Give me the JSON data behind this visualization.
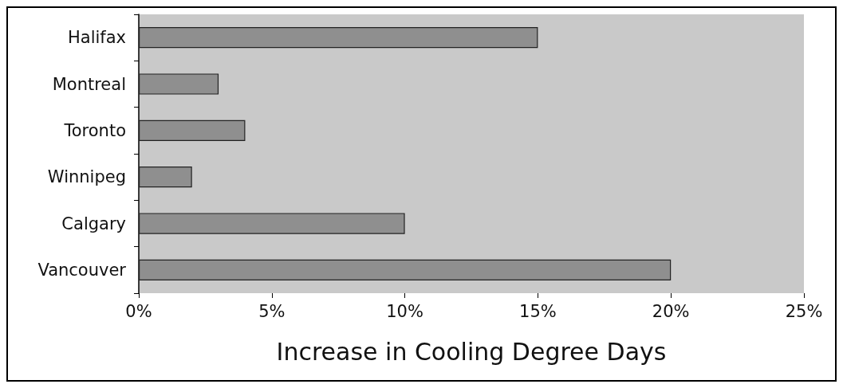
{
  "chart_data": {
    "type": "bar",
    "orientation": "horizontal",
    "xlabel": "Increase in Cooling Degree Days",
    "categories": [
      "Halifax",
      "Montreal",
      "Toronto",
      "Winnipeg",
      "Calgary",
      "Vancouver"
    ],
    "values": [
      15,
      3,
      4,
      2,
      10,
      20
    ],
    "color": "#8f8f8f",
    "xlim": [
      0,
      25
    ],
    "xticks": [
      {
        "value": 0,
        "label": "0%"
      },
      {
        "value": 5,
        "label": "5%"
      },
      {
        "value": 10,
        "label": "10%"
      },
      {
        "value": 15,
        "label": "15%"
      },
      {
        "value": 20,
        "label": "20%"
      },
      {
        "value": 25,
        "label": "25%"
      }
    ],
    "grid": false
  }
}
